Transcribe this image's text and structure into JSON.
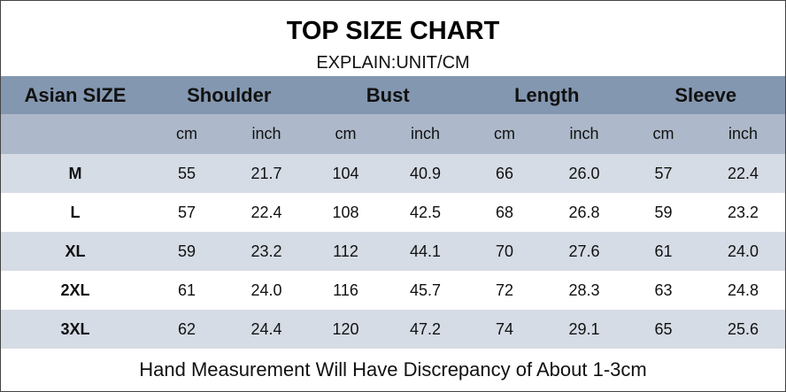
{
  "header": {
    "title": "TOP SIZE CHART",
    "subtitle": "EXPLAIN:UNIT/CM"
  },
  "table": {
    "groups": [
      "Asian SIZE",
      "Shoulder",
      "Bust",
      "Length",
      "Sleeve"
    ],
    "units": [
      "cm",
      "inch",
      "cm",
      "inch",
      "cm",
      "inch",
      "cm",
      "inch"
    ],
    "rows": [
      [
        "M",
        "55",
        "21.7",
        "104",
        "40.9",
        "66",
        "26.0",
        "57",
        "22.4"
      ],
      [
        "L",
        "57",
        "22.4",
        "108",
        "42.5",
        "68",
        "26.8",
        "59",
        "23.2"
      ],
      [
        "XL",
        "59",
        "23.2",
        "112",
        "44.1",
        "70",
        "27.6",
        "61",
        "24.0"
      ],
      [
        "2XL",
        "61",
        "24.0",
        "116",
        "45.7",
        "72",
        "28.3",
        "63",
        "24.8"
      ],
      [
        "3XL",
        "62",
        "24.4",
        "120",
        "47.2",
        "74",
        "29.1",
        "65",
        "25.6"
      ]
    ]
  },
  "footer": {
    "note": "Hand Measurement Will Have Discrepancy of About 1-3cm"
  }
}
